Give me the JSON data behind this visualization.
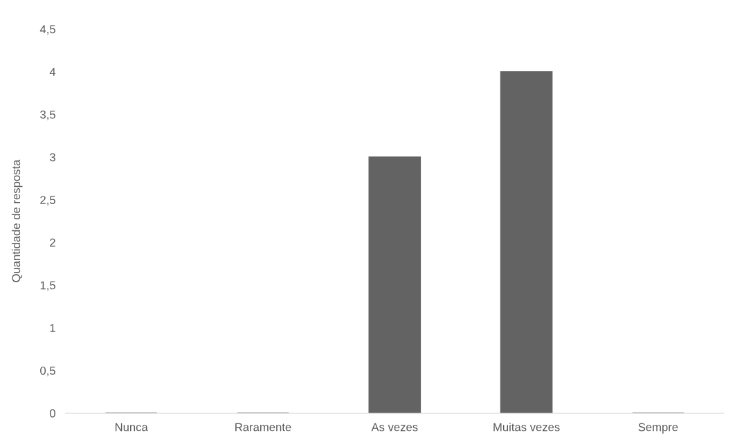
{
  "chart_data": {
    "type": "bar",
    "ylabel": "Quantidade de resposta",
    "categories": [
      "Nunca",
      "Raramente",
      "As vezes",
      "Muitas vezes",
      "Sempre"
    ],
    "values": [
      0,
      0,
      3,
      4,
      0
    ],
    "color": "#636363",
    "ylim": [
      0,
      4.5
    ],
    "yticks": [
      0,
      {
        "value": 0.5,
        "label": "0,5"
      },
      1,
      {
        "value": 1.5,
        "label": "1,5"
      },
      2,
      {
        "value": 2.5,
        "label": "2,5"
      },
      3,
      {
        "value": 3.5,
        "label": "3,5"
      },
      4,
      {
        "value": 4.5,
        "label": "4,5"
      }
    ],
    "grid": false,
    "legend": false
  }
}
